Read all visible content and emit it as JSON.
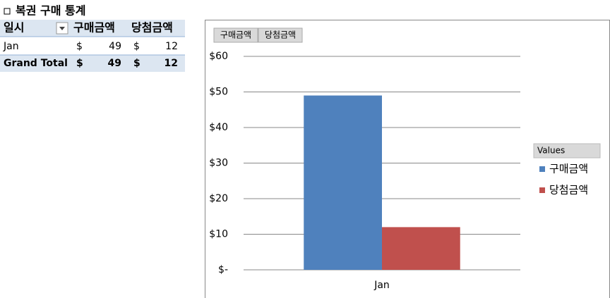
{
  "header": {
    "title": "복권 구매 통계"
  },
  "table": {
    "columns": [
      "일시",
      "구매금액",
      "당첨금액"
    ],
    "rows": [
      [
        "Jan",
        "$",
        49,
        "$",
        12
      ],
      [
        "Grand Total",
        "$",
        49,
        "$",
        12
      ]
    ]
  },
  "chart_data": {
    "type": "bar",
    "categories": [
      "Jan"
    ],
    "series": [
      {
        "name": "구매금액",
        "color": "#4f81bd",
        "values": [
          49
        ]
      },
      {
        "name": "당첨금액",
        "color": "#c0504d",
        "values": [
          12
        ]
      }
    ],
    "ylim": [
      0,
      60
    ],
    "yticks": [
      {
        "value": 0,
        "label": "$-"
      },
      {
        "value": 10,
        "label": "$10"
      },
      {
        "value": 20,
        "label": "$20"
      },
      {
        "value": 30,
        "label": "$30"
      },
      {
        "value": 40,
        "label": "$40"
      },
      {
        "value": 50,
        "label": "$50"
      },
      {
        "value": 60,
        "label": "$60"
      }
    ],
    "grid": true,
    "legend": "right",
    "legend_title": "Values"
  }
}
